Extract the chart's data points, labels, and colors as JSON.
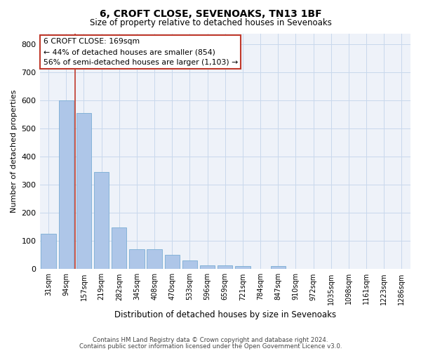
{
  "title1": "6, CROFT CLOSE, SEVENOAKS, TN13 1BF",
  "title2": "Size of property relative to detached houses in Sevenoaks",
  "xlabel": "Distribution of detached houses by size in Sevenoaks",
  "ylabel": "Number of detached properties",
  "categories": [
    "31sqm",
    "94sqm",
    "157sqm",
    "219sqm",
    "282sqm",
    "345sqm",
    "408sqm",
    "470sqm",
    "533sqm",
    "596sqm",
    "659sqm",
    "721sqm",
    "784sqm",
    "847sqm",
    "910sqm",
    "972sqm",
    "1035sqm",
    "1098sqm",
    "1161sqm",
    "1223sqm",
    "1286sqm"
  ],
  "values": [
    125,
    600,
    555,
    345,
    148,
    72,
    72,
    50,
    32,
    13,
    13,
    10,
    0,
    10,
    0,
    0,
    0,
    0,
    0,
    0,
    0
  ],
  "bar_color": "#aec6e8",
  "bar_edge_color": "#7aadd4",
  "vline_x": 1.5,
  "vline_color": "#c0392b",
  "annotation_line1": "6 CROFT CLOSE: 169sqm",
  "annotation_line2": "← 44% of detached houses are smaller (854)",
  "annotation_line3": "56% of semi-detached houses are larger (1,103) →",
  "annotation_box_color": "#c0392b",
  "ylim": [
    0,
    840
  ],
  "yticks": [
    0,
    100,
    200,
    300,
    400,
    500,
    600,
    700,
    800
  ],
  "grid_color": "#c8d8ec",
  "bg_color": "#eef2f9",
  "footer1": "Contains HM Land Registry data © Crown copyright and database right 2024.",
  "footer2": "Contains public sector information licensed under the Open Government Licence v3.0."
}
